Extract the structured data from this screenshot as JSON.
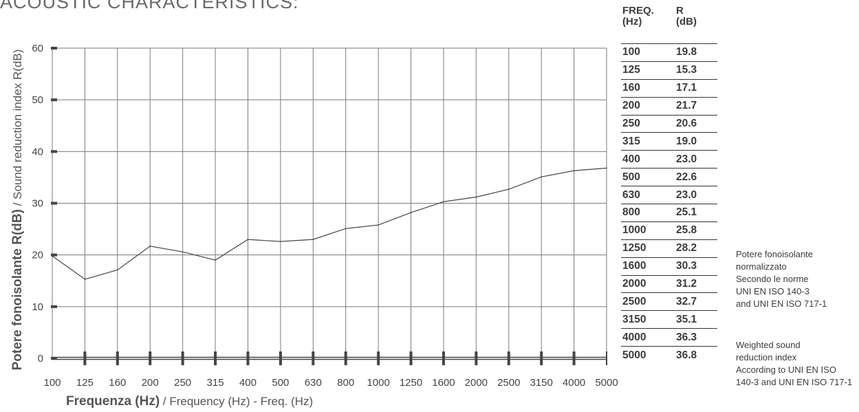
{
  "header": {
    "title": "ACOUSTIC CHARACTERISTICS:"
  },
  "chart_data": {
    "type": "line",
    "categories": [
      "100",
      "125",
      "160",
      "200",
      "250",
      "315",
      "400",
      "500",
      "630",
      "800",
      "1000",
      "1250",
      "1600",
      "2000",
      "2500",
      "3150",
      "4000",
      "5000"
    ],
    "series": [
      {
        "values": [
          19.8,
          15.3,
          17.1,
          21.7,
          20.6,
          19.0,
          23.0,
          22.6,
          23.0,
          25.1,
          25.8,
          28.2,
          30.3,
          31.2,
          32.7,
          35.1,
          36.3,
          36.8
        ]
      }
    ],
    "ylim": [
      0,
      60
    ],
    "y_ticks": [
      0,
      10,
      20,
      30,
      40,
      50,
      60
    ],
    "grid": true,
    "ylabel_bold": "Potere fonoisolante R(dB)",
    "ylabel_rest": " / Sound reduction index R(dB)",
    "xlabel_bold": "Frequenza (Hz)",
    "xlabel_rest": " / Frequency (Hz) - Freq. (Hz)",
    "line_color": "#444444",
    "grid_color": "#7a7a7a"
  },
  "table": {
    "col_freq_header": [
      "FREQ.",
      "(Hz)"
    ],
    "col_r_header": [
      "R",
      "(dB)"
    ],
    "rows": [
      {
        "freq": "100",
        "r": "19.8"
      },
      {
        "freq": "125",
        "r": "15.3"
      },
      {
        "freq": "160",
        "r": "17.1"
      },
      {
        "freq": "200",
        "r": "21.7"
      },
      {
        "freq": "250",
        "r": "20.6"
      },
      {
        "freq": "315",
        "r": "19.0"
      },
      {
        "freq": "400",
        "r": "23.0"
      },
      {
        "freq": "500",
        "r": "22.6"
      },
      {
        "freq": "630",
        "r": "23.0"
      },
      {
        "freq": "800",
        "r": "25.1"
      },
      {
        "freq": "1000",
        "r": "25.8"
      },
      {
        "freq": "1250",
        "r": "28.2"
      },
      {
        "freq": "1600",
        "r": "30.3"
      },
      {
        "freq": "2000",
        "r": "31.2"
      },
      {
        "freq": "2500",
        "r": "32.7"
      },
      {
        "freq": "3150",
        "r": "35.1"
      },
      {
        "freq": "4000",
        "r": "36.3"
      },
      {
        "freq": "5000",
        "r": "36.8"
      }
    ]
  },
  "notes": {
    "normalized": [
      "Potere fonoisolante",
      "normalizzato",
      "Secondo le norme",
      "UNI EN ISO 140-3",
      "and UNI EN ISO 717-1"
    ],
    "weighted": [
      "Weighted sound",
      "reduction index",
      "According to UNI EN ISO",
      "140-3 and UNI EN ISO 717-1"
    ]
  }
}
